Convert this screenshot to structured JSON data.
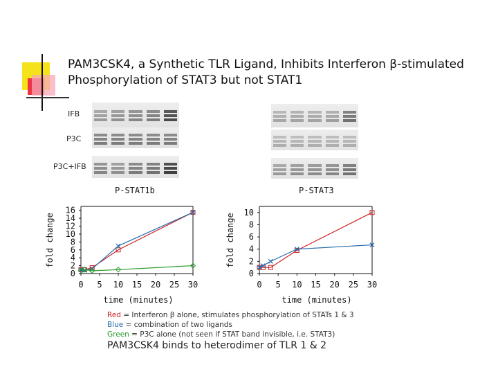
{
  "slide": {
    "title_line1": "PAM3CSK4, a Synthetic TLR Ligand, Inhibits Interferon β-stimulated",
    "title_line2": "Phosphorylation of STAT3 but not STAT1"
  },
  "blot_labels": [
    "IFB",
    "P3C",
    "P3C+IFB"
  ],
  "captions": {
    "red_word": "Red",
    "red_rest": " = Interferon β alone, stimulates phosphorylation of STATs 1 & 3",
    "blue_word": "Blue",
    "blue_rest": " = combination of two ligands",
    "green_word": "Green",
    "green_rest": " = P3C alone (not seen if STAT band invisible, i.e. STAT3)",
    "footer": "PAM3CSK4 binds to heterodimer of TLR 1 & 2"
  },
  "colors": {
    "red": "#cc2222",
    "blue": "#2a6db0",
    "green": "#2a9a2a",
    "deco_yellow": "#f5e21a",
    "deco_red": "#ee3344",
    "deco_dark": "#111111"
  },
  "chart_data": [
    {
      "type": "line",
      "title": "P-STAT1b",
      "xlabel": "time (minutes)",
      "ylabel": "fold change",
      "x_ticks": [
        "0",
        "5",
        "10",
        "15",
        "20",
        "25",
        "30"
      ],
      "y_ticks": [
        "0",
        "2",
        "4",
        "6",
        "8",
        "10",
        "12",
        "14",
        "16"
      ],
      "xlim": [
        0,
        30
      ],
      "ylim": [
        0,
        17
      ],
      "x": [
        0,
        1,
        3,
        10,
        30
      ],
      "series": [
        {
          "color": "#cc2222",
          "marker": "square",
          "values": [
            1.0,
            1.0,
            1.5,
            6.0,
            15.5
          ]
        },
        {
          "color": "#2a6db0",
          "marker": "x",
          "values": [
            1.0,
            0.8,
            1.2,
            7.0,
            15.5
          ]
        },
        {
          "color": "#2a9a2a",
          "marker": "diamond",
          "values": [
            0.8,
            1.0,
            0.7,
            1.0,
            2.0
          ]
        }
      ]
    },
    {
      "type": "line",
      "title": "P-STAT3",
      "xlabel": "time (minutes)",
      "ylabel": "fold change",
      "x_ticks": [
        "0",
        "5",
        "10",
        "15",
        "20",
        "25",
        "30"
      ],
      "y_ticks": [
        "0",
        "2",
        "4",
        "6",
        "8",
        "10"
      ],
      "xlim": [
        0,
        30
      ],
      "ylim": [
        0,
        11
      ],
      "x": [
        0,
        1,
        3,
        10,
        30
      ],
      "series": [
        {
          "color": "#cc2222",
          "marker": "square",
          "values": [
            1.0,
            1.0,
            1.0,
            3.8,
            10.0
          ]
        },
        {
          "color": "#2a6db0",
          "marker": "x",
          "values": [
            1.0,
            1.3,
            2.0,
            4.0,
            4.7
          ]
        }
      ]
    }
  ]
}
